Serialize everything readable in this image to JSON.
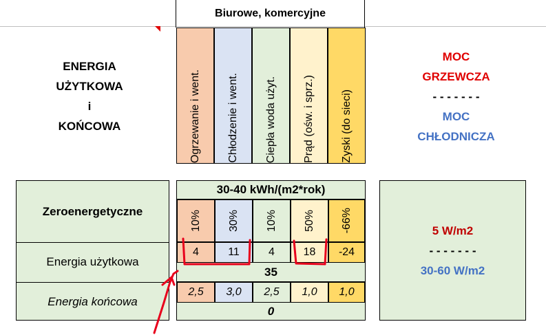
{
  "header": {
    "title": "Biurowe, komercyjne"
  },
  "left_title": {
    "l1": "ENERGIA",
    "l2": "UŻYTKOWA",
    "l3": "i",
    "l4": "KOŃCOWA"
  },
  "right_title": {
    "l1": "MOC",
    "l2": "GRZEWCZA",
    "sep": "- - - - - - -",
    "l3": "MOC",
    "l4": "CHŁODNICZA"
  },
  "columns": [
    {
      "label": "Ogrzewanie  i went.",
      "color": "#f8cbad"
    },
    {
      "label": "Chłodzenie i went.",
      "color": "#dae3f3"
    },
    {
      "label": "Ciepła woda użyt.",
      "color": "#e2efda"
    },
    {
      "label": "Prąd (ośw. i sprz.)",
      "color": "#fff2cc"
    },
    {
      "label": "Zyski (do sieci)",
      "color": "#ffd966"
    }
  ],
  "rows": {
    "r0": "Zeroenergetyczne",
    "r1": "Energia użytkowa",
    "r2": "Energia końcowa"
  },
  "mid": {
    "title": "30-40 kWh/(m2*rok)",
    "percents": [
      "10%",
      "30%",
      "10%",
      "50%",
      "-66%"
    ],
    "usable": [
      "4",
      "11",
      "4",
      "18",
      "-24"
    ],
    "usable_total": "35",
    "factors": [
      "2,5",
      "3,0",
      "2,5",
      "1,0",
      "1,0"
    ],
    "final_total": "0"
  },
  "right": {
    "heat": "5 W/m2",
    "sep": "- - - - - - -",
    "cool": "30-60 W/m2"
  },
  "colors": {
    "red": "#e00000",
    "blue": "#4472c4",
    "darkred": "#c00000",
    "ink": "#e8001c"
  }
}
